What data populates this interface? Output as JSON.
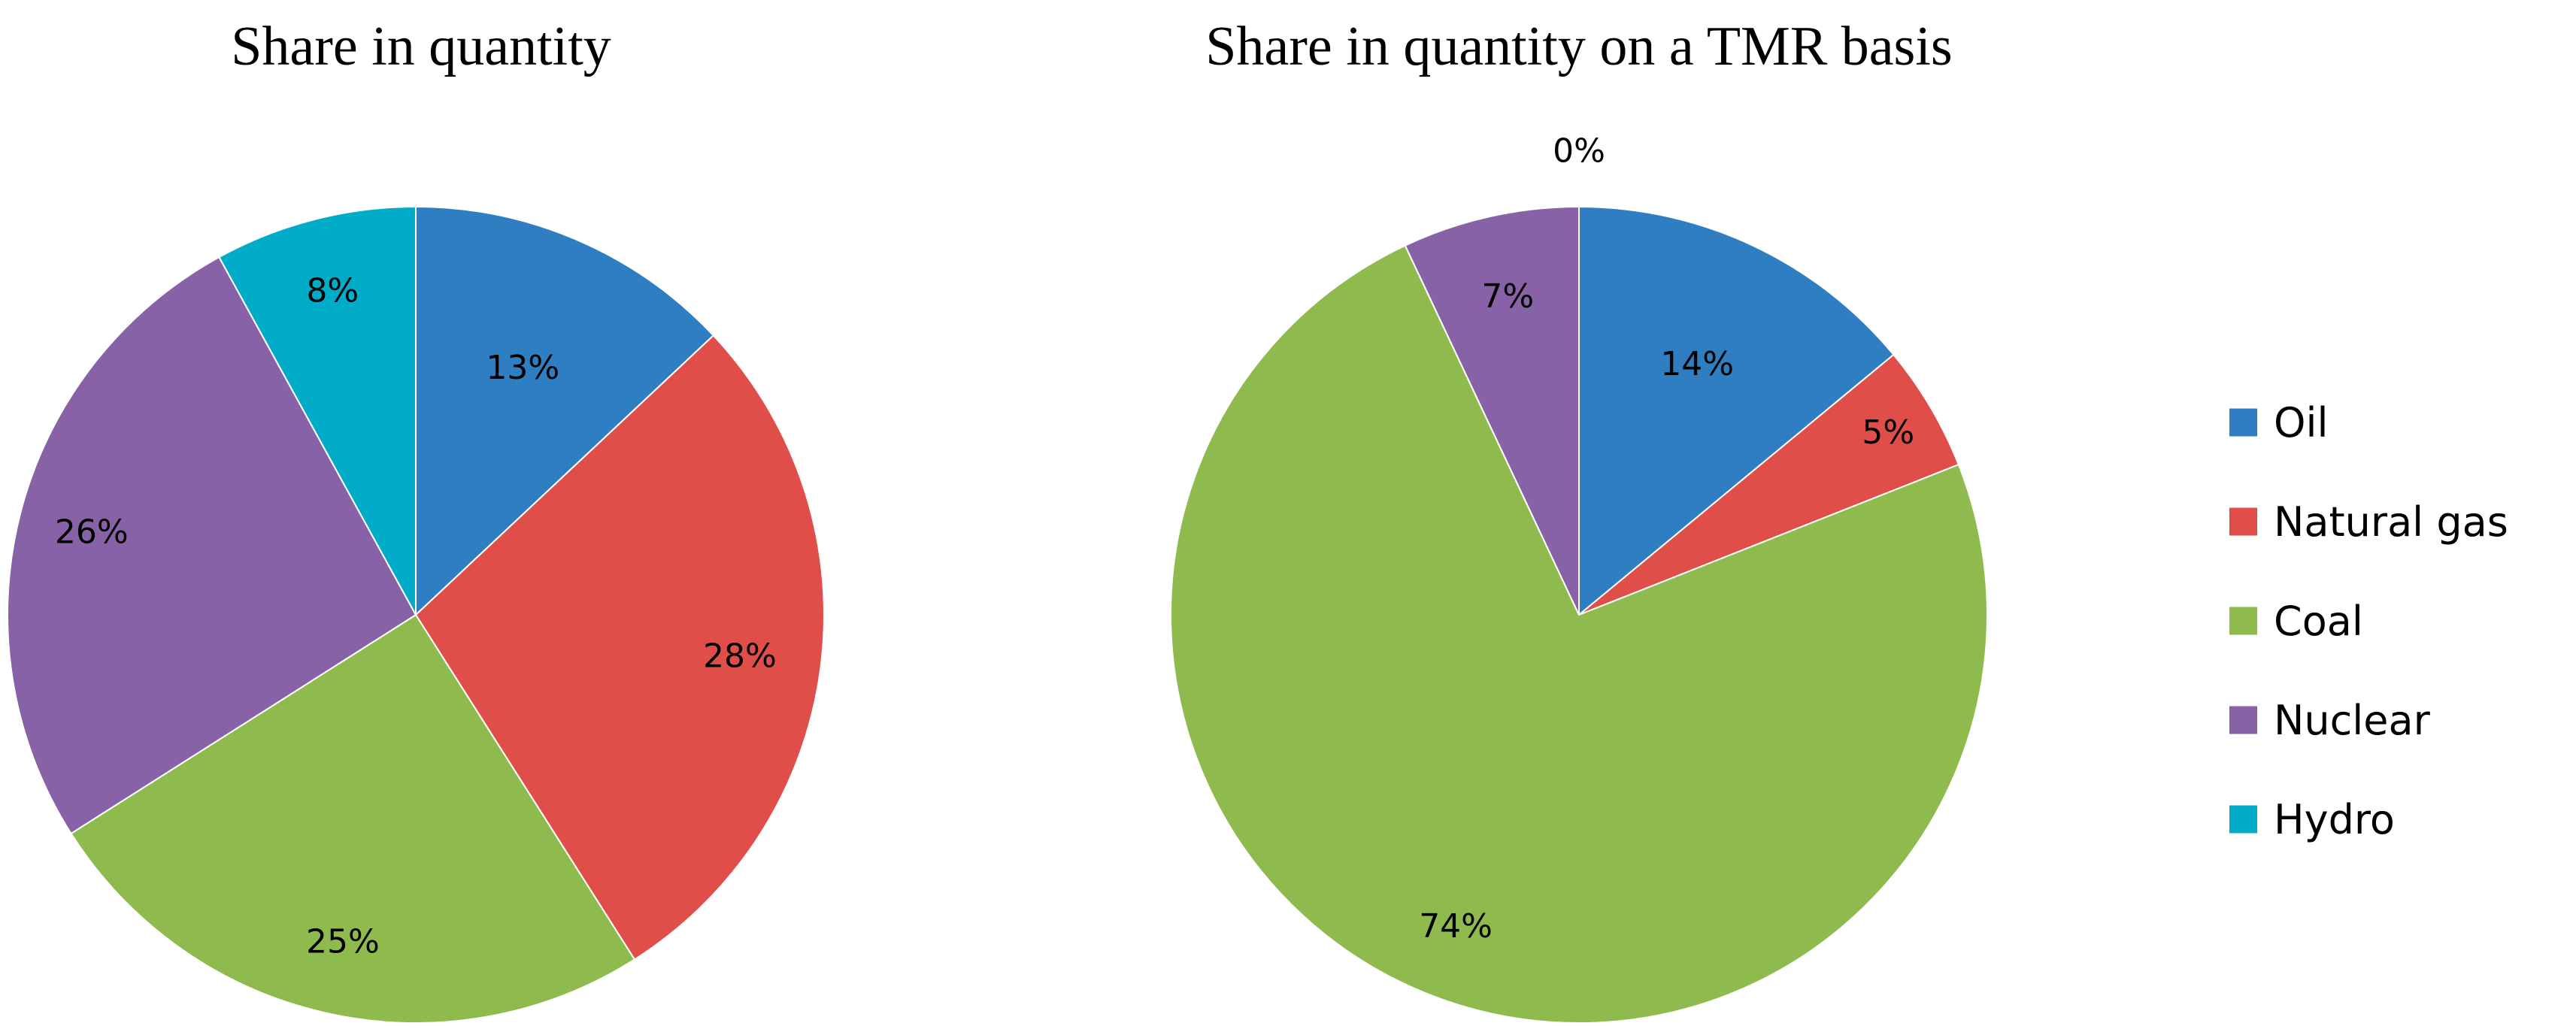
{
  "chart_data": [
    {
      "type": "pie",
      "title": "Share in quantity",
      "categories": [
        "Oil",
        "Natural gas",
        "Coal",
        "Nuclear",
        "Hydro"
      ],
      "values": [
        13,
        28,
        25,
        26,
        8
      ],
      "labels": [
        "13%",
        "28%",
        "25%",
        "26%",
        "8%"
      ],
      "start_angle_deg": 0,
      "direction": "clockwise"
    },
    {
      "type": "pie",
      "title": "Share in quantity on a TMR basis",
      "categories": [
        "Oil",
        "Natural gas",
        "Coal",
        "Nuclear",
        "Hydro"
      ],
      "values": [
        14,
        5,
        74,
        7,
        0
      ],
      "labels": [
        "14%",
        "5%",
        "74%",
        "7%",
        "0%"
      ],
      "start_angle_deg": 0,
      "direction": "clockwise"
    }
  ],
  "legend": {
    "position": "right",
    "items": [
      {
        "label": "Oil",
        "color": "#2E7EC1"
      },
      {
        "label": "Natural gas",
        "color": "#E04E4A"
      },
      {
        "label": "Coal",
        "color": "#8FBB4E"
      },
      {
        "label": "Nuclear",
        "color": "#8862A6"
      },
      {
        "label": "Hydro",
        "color": "#00ACC8"
      }
    ]
  }
}
